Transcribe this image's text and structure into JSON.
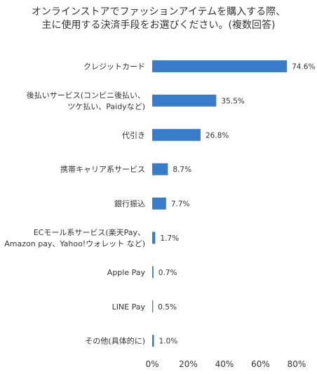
{
  "chart_data": {
    "type": "bar",
    "orientation": "horizontal",
    "title_lines": [
      "オンラインストアでファッションアイテムを購入する際、",
      "主に使用する決済手段をお選びください。(複数回答)"
    ],
    "xlabel": "",
    "ylabel": "",
    "xlim": [
      0,
      80
    ],
    "x_ticks": [
      "0%",
      "20%",
      "40%",
      "60%",
      "80%"
    ],
    "grid": false,
    "legend": "none",
    "bar_color": "#3a7ccc",
    "categories": [
      [
        "クレジットカード"
      ],
      [
        "後払いサービス(コンビニ後払い、",
        "ツケ払い、Paidyなど)"
      ],
      [
        "代引き"
      ],
      [
        "携帯キャリア系サービス"
      ],
      [
        "銀行振込"
      ],
      [
        "ECモール系サービス(楽天Pay、",
        "Amazon pay、Yahoo!ウォレット など)"
      ],
      [
        "Apple Pay"
      ],
      [
        "LINE Pay"
      ],
      [
        "その他(具体的に)"
      ]
    ],
    "values": [
      74.6,
      35.5,
      26.8,
      8.7,
      7.7,
      1.7,
      0.7,
      0.5,
      1.0
    ],
    "value_labels": [
      "74.6%",
      "35.5%",
      "26.8%",
      "8.7%",
      "7.7%",
      "1.7%",
      "0.7%",
      "0.5%",
      "1.0%"
    ]
  }
}
